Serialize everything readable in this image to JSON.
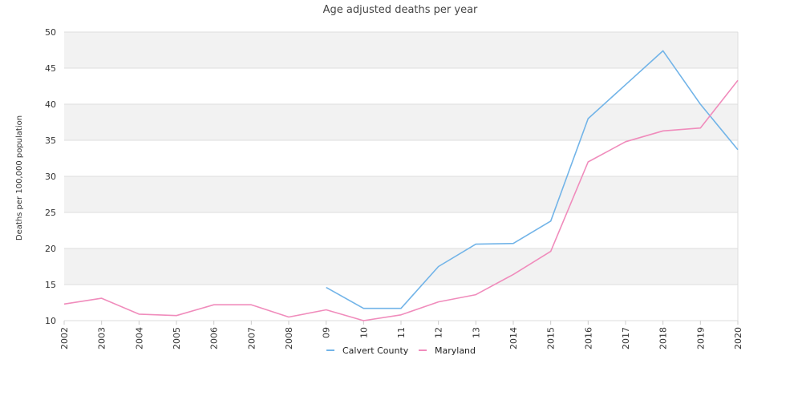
{
  "chart_data": {
    "type": "line",
    "title": "Age adjusted deaths per year",
    "ylabel": "Deaths per 100,000 population",
    "xlabel": "",
    "ylim": [
      10,
      50
    ],
    "yticks": [
      10,
      15,
      20,
      25,
      30,
      35,
      40,
      45,
      50
    ],
    "categories": [
      "2002",
      "2003",
      "2004",
      "2005",
      "2006",
      "2007",
      "2008",
      "09",
      "10",
      "11",
      "12",
      "13",
      "2014",
      "2015",
      "2016",
      "2017",
      "2018",
      "2019",
      "2020"
    ],
    "grid": true,
    "legend_position": "bottom",
    "series": [
      {
        "name": "Calvert County",
        "color": "#72b4e8",
        "values": [
          null,
          null,
          null,
          null,
          null,
          null,
          null,
          14.6,
          11.7,
          11.7,
          17.5,
          20.6,
          20.7,
          23.8,
          38.0,
          42.7,
          47.4,
          40.0,
          33.7
        ]
      },
      {
        "name": "Maryland",
        "color": "#f08cbc",
        "values": [
          12.3,
          13.1,
          10.9,
          10.7,
          12.2,
          12.2,
          10.5,
          11.5,
          10.0,
          10.8,
          12.6,
          13.6,
          16.4,
          19.6,
          32.0,
          34.8,
          36.3,
          36.7,
          43.3
        ]
      }
    ]
  }
}
